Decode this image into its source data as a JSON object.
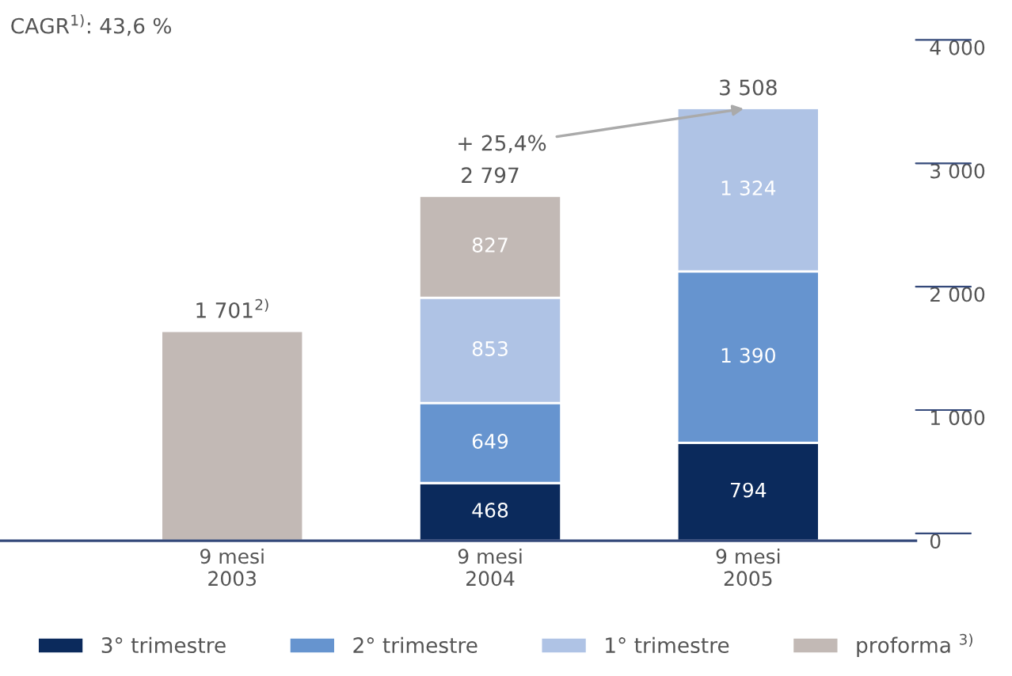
{
  "chart_data": {
    "type": "bar",
    "stacked": true,
    "categories": [
      "9 mesi\n2003",
      "9 mesi\n2004",
      "9 mesi\n2005"
    ],
    "series": [
      {
        "name": "3° trimestre",
        "color": "#0b2a5c",
        "values": [
          null,
          468,
          794
        ],
        "value_labels": [
          null,
          "468",
          "794"
        ]
      },
      {
        "name": "2° trimestre",
        "color": "#6694cf",
        "values": [
          null,
          649,
          1390
        ],
        "value_labels": [
          null,
          "649",
          "1 390"
        ]
      },
      {
        "name": "1° trimestre",
        "color": "#afc3e5",
        "values": [
          null,
          853,
          1324
        ],
        "value_labels": [
          null,
          "853",
          "1 324"
        ]
      },
      {
        "name": "proforma $^{3)}$",
        "color": "#c2b9b5",
        "values": [
          1701,
          827,
          null
        ],
        "value_labels": [
          null,
          "827",
          null
        ]
      }
    ],
    "totals": [
      "1 701$^{2)}$",
      "2 797",
      "3 508"
    ],
    "ylim": [
      0,
      4000
    ],
    "yticks": [
      0,
      {
        "value": 1000,
        "label": "1 000"
      },
      {
        "value": 2000,
        "label": "2 000"
      },
      {
        "value": 3000,
        "label": "3 000"
      },
      {
        "value": 4000,
        "label": "4 000"
      }
    ],
    "annotations": [
      "CAGR$^{1)}$: 43,6 %",
      {
        "text": "+ 25,4%",
        "x": "9 mesi\n2005",
        "y": 3508
      }
    ],
    "legend": "bottom",
    "grid": false
  }
}
